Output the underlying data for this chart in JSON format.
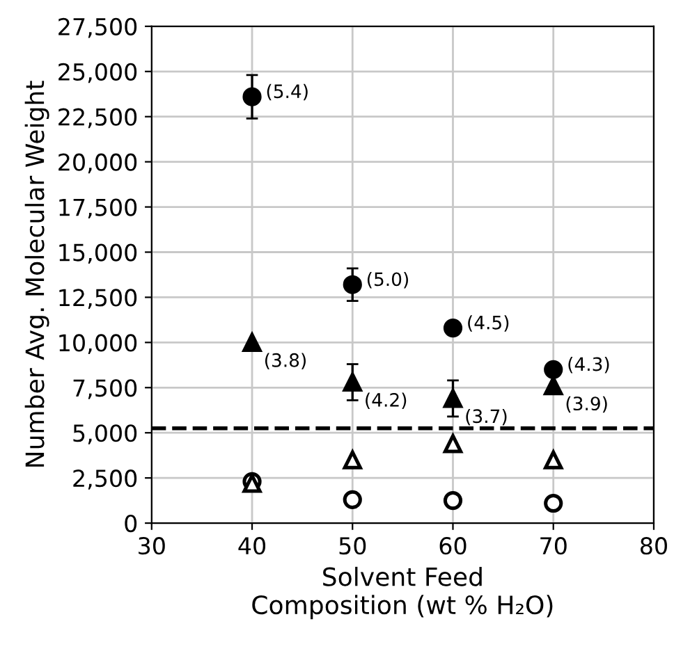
{
  "chart_data": {
    "type": "scatter",
    "xlabel": "Solvent Feed\nComposition (wt % H₂O)",
    "ylabel": "Number Avg. Molecular Weight",
    "x": [
      40,
      50,
      60,
      70
    ],
    "series": [
      {
        "color": "#000000",
        "marker": "circle",
        "values": [
          23600,
          13200,
          10800,
          8500
        ],
        "errors": [
          1200,
          900,
          null,
          null
        ]
      },
      {
        "color": "#000000",
        "marker": "triangle",
        "values": [
          10000,
          7800,
          6900,
          7600
        ],
        "errors": [
          null,
          1000,
          1000,
          null
        ]
      },
      {
        "color": "#ffffff",
        "marker": "triangle",
        "values": [
          2200,
          3500,
          4400,
          3500
        ]
      },
      {
        "color": "#ffffff",
        "marker": "circle",
        "values": [
          2300,
          1300,
          1250,
          1100
        ]
      }
    ],
    "annotations": [
      {
        "text": "(5.4)",
        "x": 40,
        "y": 23600
      },
      {
        "text": "(5.0)",
        "x": 50,
        "y": 13200
      },
      {
        "text": "(4.5)",
        "x": 60,
        "y": 10800
      },
      {
        "text": "(4.3)",
        "x": 70,
        "y": 8500
      },
      {
        "text": "(3.8)",
        "x": 40,
        "y": 10000
      },
      {
        "text": "(4.2)",
        "x": 50,
        "y": 7800
      },
      {
        "text": "(3.7)",
        "x": 60,
        "y": 6900
      },
      {
        "text": "(3.9)",
        "x": 70,
        "y": 7600
      }
    ],
    "ref_lines": [
      {
        "axis": "y",
        "value": 5250,
        "color": "#000000",
        "line_style": "dashed"
      }
    ],
    "xlim": [
      30,
      80
    ],
    "xticks": [
      30,
      40,
      50,
      60,
      70,
      80
    ],
    "ylim": [
      0,
      27500
    ],
    "yticks": [
      {
        "value": 0,
        "label": "0"
      },
      {
        "value": 2500,
        "label": "2,500"
      },
      {
        "value": 5000,
        "label": "5,000"
      },
      {
        "value": 7500,
        "label": "7,500"
      },
      {
        "value": 10000,
        "label": "10,000"
      },
      {
        "value": 12500,
        "label": "12,500"
      },
      {
        "value": 15000,
        "label": "15,000"
      },
      {
        "value": 17500,
        "label": "17,500"
      },
      {
        "value": 20000,
        "label": "20,000"
      },
      {
        "value": 22500,
        "label": "22,500"
      },
      {
        "value": 25000,
        "label": "25,000"
      },
      {
        "value": 27500,
        "label": "27,500"
      }
    ],
    "grid": true
  }
}
